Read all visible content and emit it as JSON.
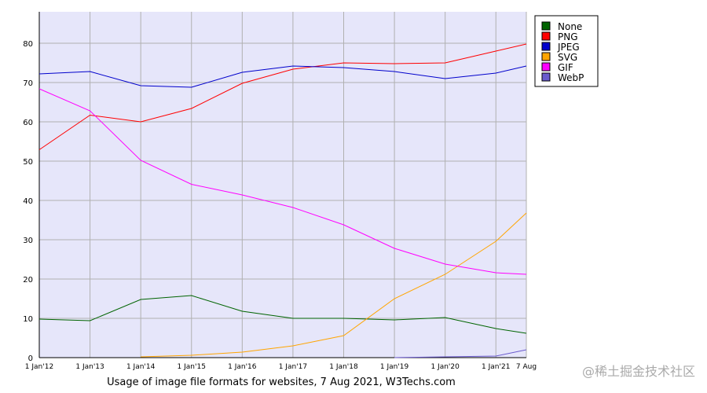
{
  "chart_data": {
    "type": "line",
    "caption": "Usage of image file formats for websites, 7 Aug 2021, W3Techs.com",
    "watermark": "@稀土掘金技术社区",
    "x": [
      2012,
      2013,
      2014,
      2015,
      2016,
      2017,
      2018,
      2019,
      2020,
      2021,
      2021.6
    ],
    "xlim": [
      2012,
      2021.6
    ],
    "xticks": [
      {
        "value": 2012,
        "label": "1 Jan'12"
      },
      {
        "value": 2013,
        "label": "1 Jan'13"
      },
      {
        "value": 2014,
        "label": "1 Jan'14"
      },
      {
        "value": 2015,
        "label": "1 Jan'15"
      },
      {
        "value": 2016,
        "label": "1 Jan'16"
      },
      {
        "value": 2017,
        "label": "1 Jan'17"
      },
      {
        "value": 2018,
        "label": "1 Jan'18"
      },
      {
        "value": 2019,
        "label": "1 Jan'19"
      },
      {
        "value": 2020,
        "label": "1 Jan'20"
      },
      {
        "value": 2021,
        "label": "1 Jan'21"
      },
      {
        "value": 2021.6,
        "label": "7 Aug"
      }
    ],
    "ylim": [
      0,
      88
    ],
    "yticks": [
      0,
      10,
      20,
      30,
      40,
      50,
      60,
      70,
      80
    ],
    "grid": true,
    "legend": "right",
    "series": [
      {
        "name": "None",
        "color": "#006400",
        "values": [
          9.8,
          9.4,
          14.8,
          15.8,
          11.8,
          10,
          10,
          9.6,
          10.2,
          7.4,
          6.2
        ]
      },
      {
        "name": "PNG",
        "color": "#ff0000",
        "values": [
          52.9,
          61.7,
          60,
          63.4,
          69.8,
          73.4,
          75,
          74.8,
          75,
          78,
          79.8
        ]
      },
      {
        "name": "JPEG",
        "color": "#0000cc",
        "values": [
          72.2,
          72.8,
          69.2,
          68.8,
          72.6,
          74.2,
          73.8,
          72.8,
          71,
          72.4,
          74.2
        ]
      },
      {
        "name": "SVG",
        "color": "#ffa500",
        "values": [
          null,
          null,
          0.2,
          0.6,
          1.4,
          3,
          5.6,
          15,
          21.2,
          29.6,
          36.8
        ]
      },
      {
        "name": "GIF",
        "color": "#ff00ff",
        "values": [
          68.4,
          62.8,
          50.2,
          44.1,
          41.4,
          38.2,
          33.8,
          27.8,
          23.8,
          21.6,
          21.2
        ]
      },
      {
        "name": "WebP",
        "color": "#6a5acd",
        "values": [
          null,
          null,
          null,
          null,
          null,
          null,
          null,
          0,
          0.2,
          0.4,
          2.0
        ]
      }
    ]
  }
}
